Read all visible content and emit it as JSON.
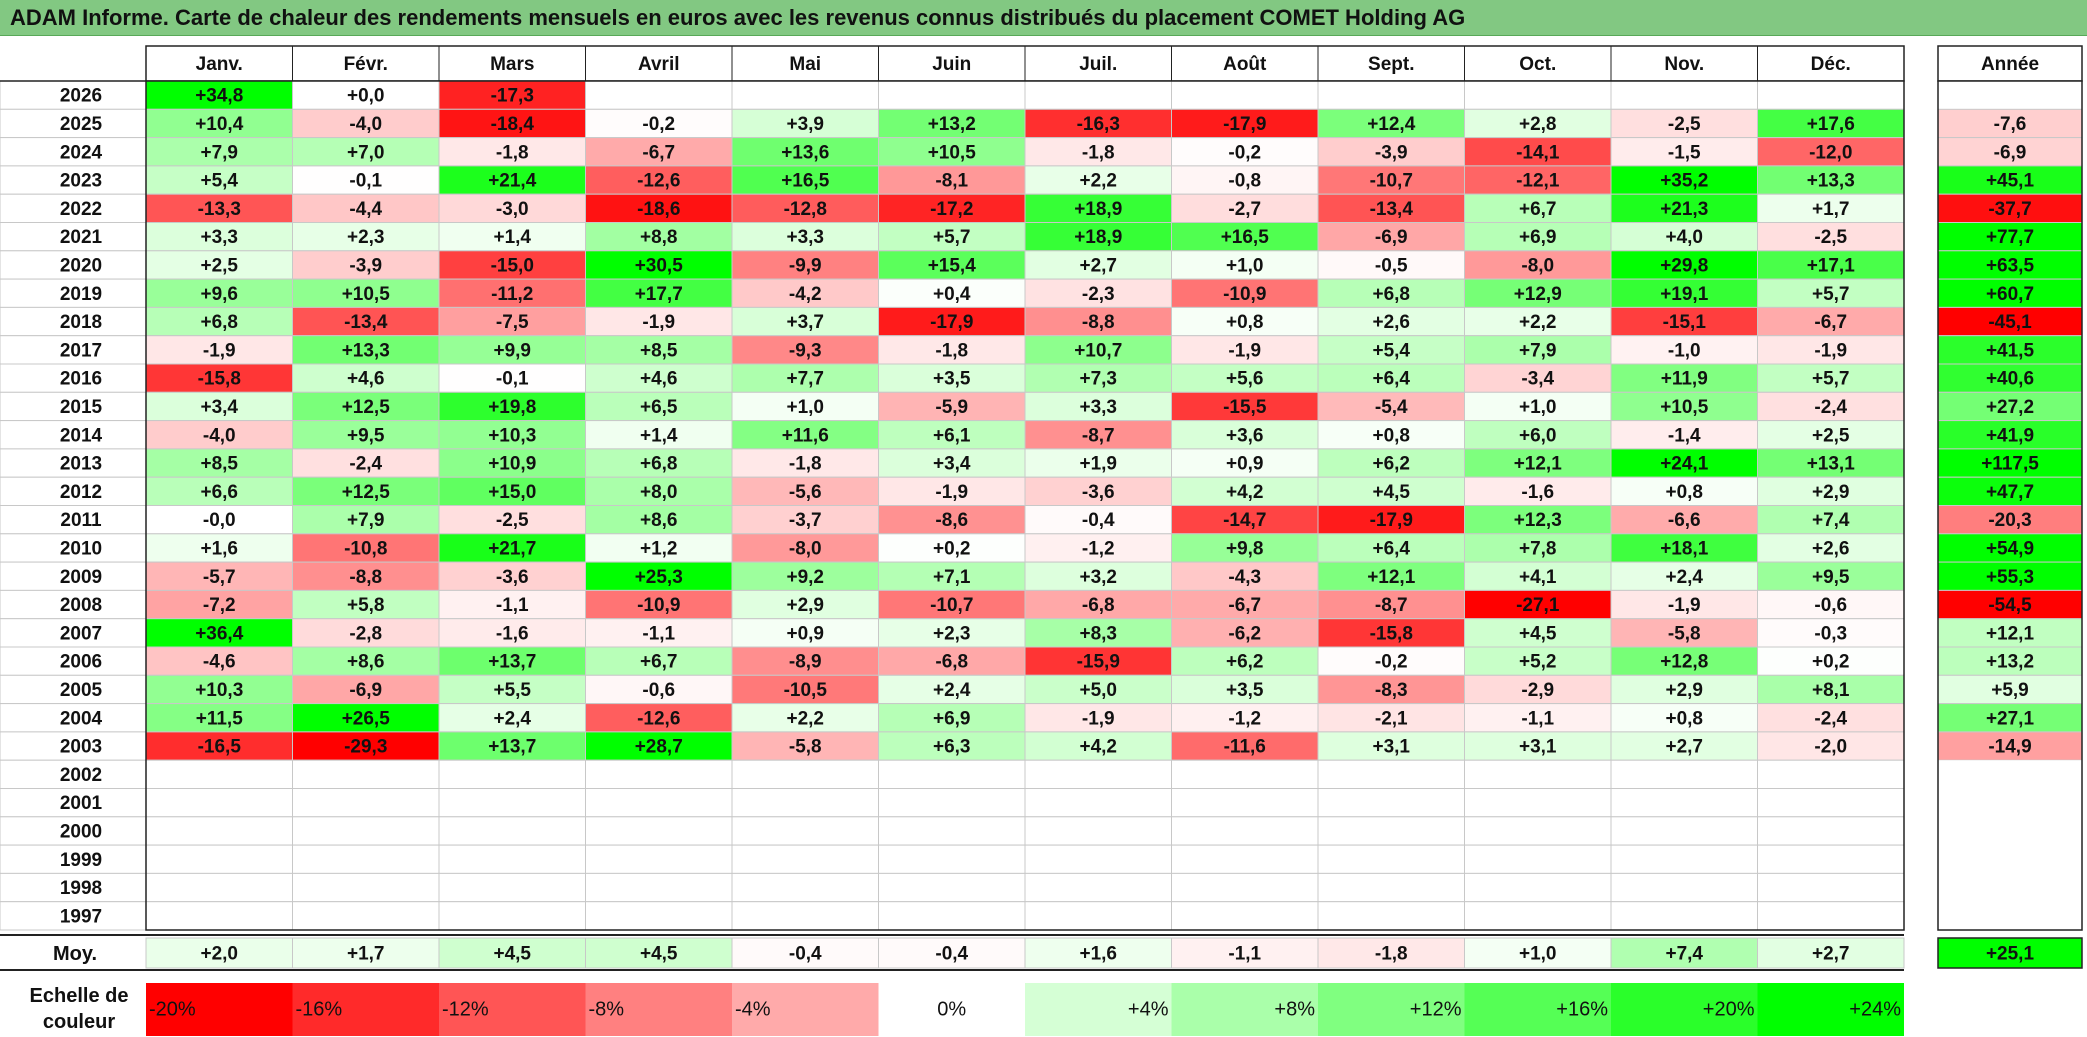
{
  "title": "ADAM Informe. Carte de chaleur des rendements mensuels en euros avec les revenus connus distribués du placement COMET Holding AG",
  "chart_data": {
    "type": "heatmap",
    "title": "ADAM Informe. Carte de chaleur des rendements mensuels en euros avec les revenus connus distribués du placement COMET Holding AG",
    "columns": [
      "Janv.",
      "Févr.",
      "Mars",
      "Avril",
      "Mai",
      "Juin",
      "Juil.",
      "Août",
      "Sept.",
      "Oct.",
      "Nov.",
      "Déc."
    ],
    "year_header": "Année",
    "rows": [
      {
        "year": "2026",
        "months": [
          "+34,8",
          "+0,0",
          "-17,3",
          "",
          "",
          "",
          "",
          "",
          "",
          "",
          "",
          ""
        ],
        "annual": ""
      },
      {
        "year": "2025",
        "months": [
          "+10,4",
          "-4,0",
          "-18,4",
          "-0,2",
          "+3,9",
          "+13,2",
          "-16,3",
          "-17,9",
          "+12,4",
          "+2,8",
          "-2,5",
          "+17,6"
        ],
        "annual": "-7,6"
      },
      {
        "year": "2024",
        "months": [
          "+7,9",
          "+7,0",
          "-1,8",
          "-6,7",
          "+13,6",
          "+10,5",
          "-1,8",
          "-0,2",
          "-3,9",
          "-14,1",
          "-1,5",
          "-12,0"
        ],
        "annual": "-6,9"
      },
      {
        "year": "2023",
        "months": [
          "+5,4",
          "-0,1",
          "+21,4",
          "-12,6",
          "+16,5",
          "-8,1",
          "+2,2",
          "-0,8",
          "-10,7",
          "-12,1",
          "+35,2",
          "+13,3"
        ],
        "annual": "+45,1"
      },
      {
        "year": "2022",
        "months": [
          "-13,3",
          "-4,4",
          "-3,0",
          "-18,6",
          "-12,8",
          "-17,2",
          "+18,9",
          "-2,7",
          "-13,4",
          "+6,7",
          "+21,3",
          "+1,7"
        ],
        "annual": "-37,7"
      },
      {
        "year": "2021",
        "months": [
          "+3,3",
          "+2,3",
          "+1,4",
          "+8,8",
          "+3,3",
          "+5,7",
          "+18,9",
          "+16,5",
          "-6,9",
          "+6,9",
          "+4,0",
          "-2,5"
        ],
        "annual": "+77,7"
      },
      {
        "year": "2020",
        "months": [
          "+2,5",
          "-3,9",
          "-15,0",
          "+30,5",
          "-9,9",
          "+15,4",
          "+2,7",
          "+1,0",
          "-0,5",
          "-8,0",
          "+29,8",
          "+17,1"
        ],
        "annual": "+63,5"
      },
      {
        "year": "2019",
        "months": [
          "+9,6",
          "+10,5",
          "-11,2",
          "+17,7",
          "-4,2",
          "+0,4",
          "-2,3",
          "-10,9",
          "+6,8",
          "+12,9",
          "+19,1",
          "+5,7"
        ],
        "annual": "+60,7"
      },
      {
        "year": "2018",
        "months": [
          "+6,8",
          "-13,4",
          "-7,5",
          "-1,9",
          "+3,7",
          "-17,9",
          "-8,8",
          "+0,8",
          "+2,6",
          "+2,2",
          "-15,1",
          "-6,7"
        ],
        "annual": "-45,1"
      },
      {
        "year": "2017",
        "months": [
          "-1,9",
          "+13,3",
          "+9,9",
          "+8,5",
          "-9,3",
          "-1,8",
          "+10,7",
          "-1,9",
          "+5,4",
          "+7,9",
          "-1,0",
          "-1,9"
        ],
        "annual": "+41,5"
      },
      {
        "year": "2016",
        "months": [
          "-15,8",
          "+4,6",
          "-0,1",
          "+4,6",
          "+7,7",
          "+3,5",
          "+7,3",
          "+5,6",
          "+6,4",
          "-3,4",
          "+11,9",
          "+5,7"
        ],
        "annual": "+40,6"
      },
      {
        "year": "2015",
        "months": [
          "+3,4",
          "+12,5",
          "+19,8",
          "+6,5",
          "+1,0",
          "-5,9",
          "+3,3",
          "-15,5",
          "-5,4",
          "+1,0",
          "+10,5",
          "-2,4"
        ],
        "annual": "+27,2"
      },
      {
        "year": "2014",
        "months": [
          "-4,0",
          "+9,5",
          "+10,3",
          "+1,4",
          "+11,6",
          "+6,1",
          "-8,7",
          "+3,6",
          "+0,8",
          "+6,0",
          "-1,4",
          "+2,5"
        ],
        "annual": "+41,9"
      },
      {
        "year": "2013",
        "months": [
          "+8,5",
          "-2,4",
          "+10,9",
          "+6,8",
          "-1,8",
          "+3,4",
          "+1,9",
          "+0,9",
          "+6,2",
          "+12,1",
          "+24,1",
          "+13,1"
        ],
        "annual": "+117,5"
      },
      {
        "year": "2012",
        "months": [
          "+6,6",
          "+12,5",
          "+15,0",
          "+8,0",
          "-5,6",
          "-1,9",
          "-3,6",
          "+4,2",
          "+4,5",
          "-1,6",
          "+0,8",
          "+2,9"
        ],
        "annual": "+47,7"
      },
      {
        "year": "2011",
        "months": [
          "-0,0",
          "+7,9",
          "-2,5",
          "+8,6",
          "-3,7",
          "-8,6",
          "-0,4",
          "-14,7",
          "-17,9",
          "+12,3",
          "-6,6",
          "+7,4"
        ],
        "annual": "-20,3"
      },
      {
        "year": "2010",
        "months": [
          "+1,6",
          "-10,8",
          "+21,7",
          "+1,2",
          "-8,0",
          "+0,2",
          "-1,2",
          "+9,8",
          "+6,4",
          "+7,8",
          "+18,1",
          "+2,6"
        ],
        "annual": "+54,9"
      },
      {
        "year": "2009",
        "months": [
          "-5,7",
          "-8,8",
          "-3,6",
          "+25,3",
          "+9,2",
          "+7,1",
          "+3,2",
          "-4,3",
          "+12,1",
          "+4,1",
          "+2,4",
          "+9,5"
        ],
        "annual": "+55,3"
      },
      {
        "year": "2008",
        "months": [
          "-7,2",
          "+5,8",
          "-1,1",
          "-10,9",
          "+2,9",
          "-10,7",
          "-6,8",
          "-6,7",
          "-8,7",
          "-27,1",
          "-1,9",
          "-0,6"
        ],
        "annual": "-54,5"
      },
      {
        "year": "2007",
        "months": [
          "+36,4",
          "-2,8",
          "-1,6",
          "-1,1",
          "+0,9",
          "+2,3",
          "+8,3",
          "-6,2",
          "-15,8",
          "+4,5",
          "-5,8",
          "-0,3"
        ],
        "annual": "+12,1"
      },
      {
        "year": "2006",
        "months": [
          "-4,6",
          "+8,6",
          "+13,7",
          "+6,7",
          "-8,9",
          "-6,8",
          "-15,9",
          "+6,2",
          "-0,2",
          "+5,2",
          "+12,8",
          "+0,2"
        ],
        "annual": "+13,2"
      },
      {
        "year": "2005",
        "months": [
          "+10,3",
          "-6,9",
          "+5,5",
          "-0,6",
          "-10,5",
          "+2,4",
          "+5,0",
          "+3,5",
          "-8,3",
          "-2,9",
          "+2,9",
          "+8,1"
        ],
        "annual": "+5,9"
      },
      {
        "year": "2004",
        "months": [
          "+11,5",
          "+26,5",
          "+2,4",
          "-12,6",
          "+2,2",
          "+6,9",
          "-1,9",
          "-1,2",
          "-2,1",
          "-1,1",
          "+0,8",
          "-2,4"
        ],
        "annual": "+27,1"
      },
      {
        "year": "2003",
        "months": [
          "-16,5",
          "-29,3",
          "+13,7",
          "+28,7",
          "-5,8",
          "+6,3",
          "+4,2",
          "-11,6",
          "+3,1",
          "+3,1",
          "+2,7",
          "-2,0"
        ],
        "annual": "-14,9"
      },
      {
        "year": "2002",
        "months": [
          "",
          "",
          "",
          "",
          "",
          "",
          "",
          "",
          "",
          "",
          "",
          ""
        ],
        "annual": ""
      },
      {
        "year": "2001",
        "months": [
          "",
          "",
          "",
          "",
          "",
          "",
          "",
          "",
          "",
          "",
          "",
          ""
        ],
        "annual": ""
      },
      {
        "year": "2000",
        "months": [
          "",
          "",
          "",
          "",
          "",
          "",
          "",
          "",
          "",
          "",
          "",
          ""
        ],
        "annual": ""
      },
      {
        "year": "1999",
        "months": [
          "",
          "",
          "",
          "",
          "",
          "",
          "",
          "",
          "",
          "",
          "",
          ""
        ],
        "annual": ""
      },
      {
        "year": "1998",
        "months": [
          "",
          "",
          "",
          "",
          "",
          "",
          "",
          "",
          "",
          "",
          "",
          ""
        ],
        "annual": ""
      },
      {
        "year": "1997",
        "months": [
          "",
          "",
          "",
          "",
          "",
          "",
          "",
          "",
          "",
          "",
          "",
          ""
        ],
        "annual": ""
      }
    ],
    "average_row": {
      "label": "Moy.",
      "months": [
        "+2,0",
        "+1,7",
        "+4,5",
        "+4,5",
        "-0,4",
        "-0,4",
        "+1,6",
        "-1,1",
        "-1,8",
        "+1,0",
        "+7,4",
        "+2,7"
      ],
      "annual": "+25,1"
    },
    "color_scale": {
      "label_line1": "Echelle de",
      "label_line2": "couleur",
      "stops": [
        {
          "label": "-20%",
          "value": -20,
          "color": "#ff0000",
          "align": "left"
        },
        {
          "label": "-16%",
          "value": -16,
          "color": "#ff2a2a",
          "align": "left"
        },
        {
          "label": "-12%",
          "value": -12,
          "color": "#ff5555",
          "align": "left"
        },
        {
          "label": "-8%",
          "value": -8,
          "color": "#ff8080",
          "align": "left"
        },
        {
          "label": "-4%",
          "value": -4,
          "color": "#ffaaaa",
          "align": "left"
        },
        {
          "label": "0%",
          "value": 0,
          "color": "#ffffff",
          "align": "center"
        },
        {
          "label": "+4%",
          "value": 4,
          "color": "#d5ffd5",
          "align": "right"
        },
        {
          "label": "+8%",
          "value": 8,
          "color": "#aaffaa",
          "align": "right"
        },
        {
          "label": "+12%",
          "value": 12,
          "color": "#80ff80",
          "align": "right"
        },
        {
          "label": "+16%",
          "value": 16,
          "color": "#55ff55",
          "align": "right"
        },
        {
          "label": "+20%",
          "value": 20,
          "color": "#2aff2a",
          "align": "right"
        },
        {
          "label": "+24%",
          "value": 24,
          "color": "#00ff00",
          "align": "right"
        }
      ]
    },
    "colors": {
      "positive_max": "#00ff00",
      "negative_max": "#ff0000",
      "neutral": "#ffffff",
      "title_background": "#82c882"
    }
  }
}
